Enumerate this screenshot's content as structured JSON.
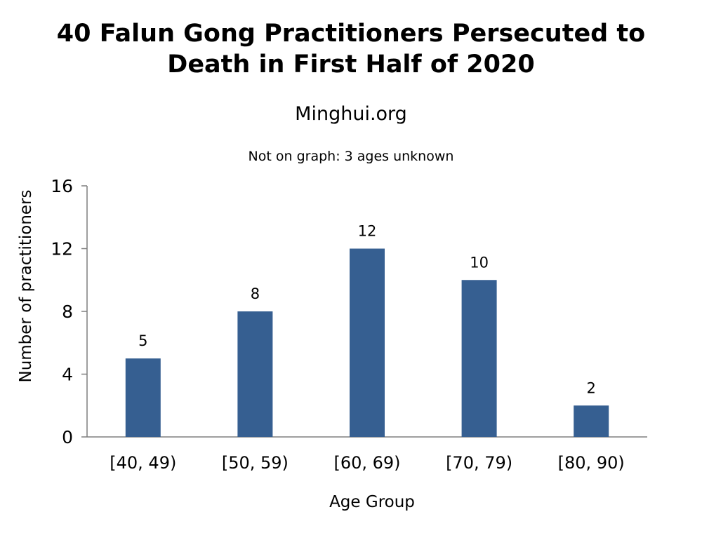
{
  "chart_data": {
    "type": "bar",
    "title": [
      "40 Falun Gong Practitioners Persecuted to",
      "Death in First Half of 2020"
    ],
    "subtitle": "Minghui.org",
    "annotation": "Not on graph: 3 ages unknown",
    "xlabel": "Age Group",
    "ylabel": "Number of practitioners",
    "categories": [
      "[40, 49)",
      "[50, 59)",
      "[60, 69)",
      "[70, 79)",
      "[80, 90)"
    ],
    "values": [
      5,
      8,
      12,
      10,
      2
    ],
    "data_labels": [
      "5",
      "8",
      "12",
      "10",
      "2"
    ],
    "ylim": [
      0,
      16
    ],
    "yticks": [
      0,
      4,
      8,
      12,
      16
    ],
    "ytick_labels": [
      "0",
      "4",
      "8",
      "12",
      "16"
    ],
    "grid": false,
    "legend": "none",
    "bar_color": "#365F91"
  }
}
